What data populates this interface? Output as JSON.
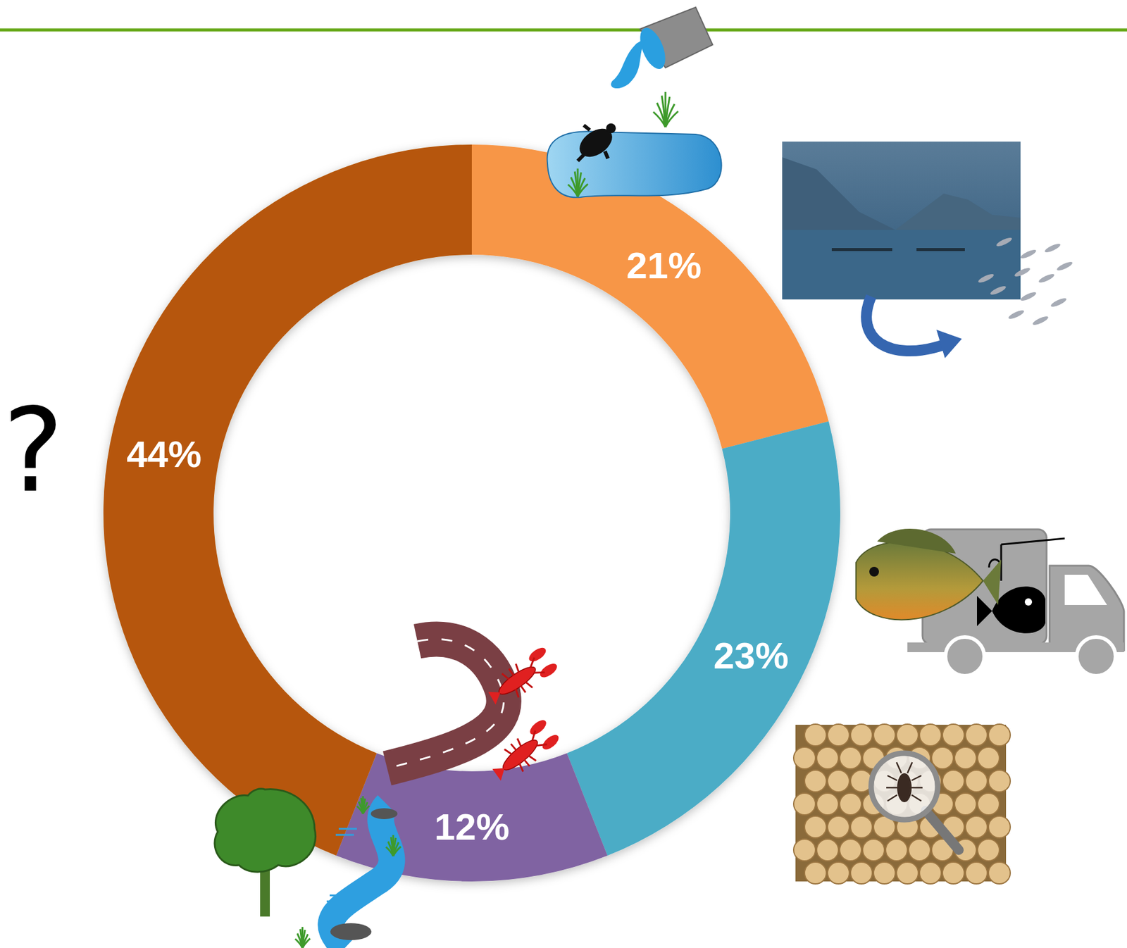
{
  "chart_data": {
    "type": "donut",
    "values": [
      21,
      23,
      12,
      44
    ],
    "value_labels": [
      "21%",
      "23%",
      "12%",
      "44%"
    ],
    "colors": [
      "#F79646",
      "#4BACC6",
      "#8064A2",
      "#B65708"
    ],
    "data_labels": true,
    "annotations": [
      "?"
    ]
  }
}
